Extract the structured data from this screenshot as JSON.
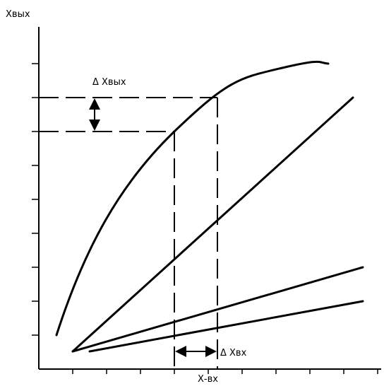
{
  "labels": {
    "y_axis": "Хвых",
    "delta_y": "Δ Хвых",
    "delta_x": "Δ Хвх",
    "x_axis": "Х-вх"
  }
}
